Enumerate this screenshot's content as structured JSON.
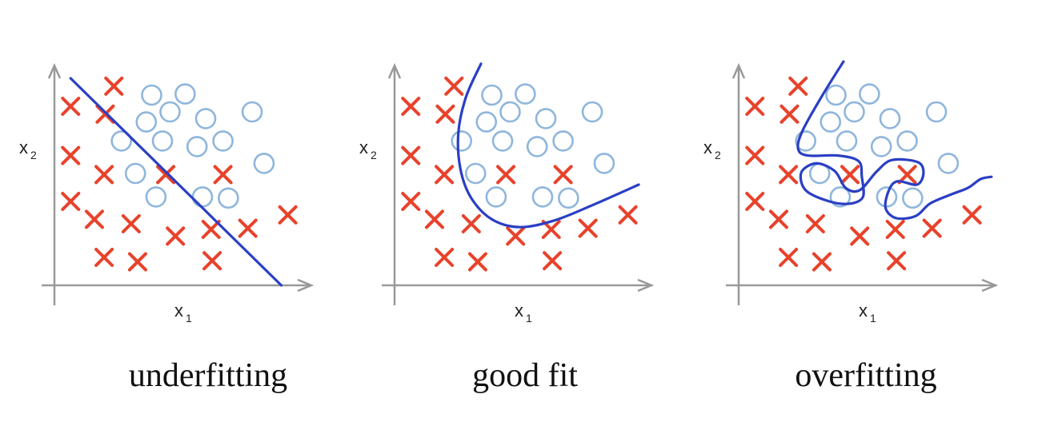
{
  "colors": {
    "cross": "#e8422b",
    "circle": "#8fb6dc",
    "boundary": "#2a3fc4",
    "axis": "#999999"
  },
  "panels": [
    {
      "id": "underfitting",
      "caption": "underfitting",
      "x_axis_label": "x",
      "x_axis_sub": "1",
      "y_axis_label": "x",
      "y_axis_sub": "2",
      "crosses": [
        [
          2.75,
          8.9
        ],
        [
          0.75,
          8.0
        ],
        [
          2.35,
          7.65
        ],
        [
          0.75,
          5.8
        ],
        [
          2.3,
          4.95
        ],
        [
          5.15,
          4.95
        ],
        [
          7.8,
          4.95
        ],
        [
          0.75,
          3.75
        ],
        [
          1.85,
          2.95
        ],
        [
          3.55,
          2.75
        ],
        [
          5.6,
          2.2
        ],
        [
          7.25,
          2.5
        ],
        [
          8.95,
          2.55
        ],
        [
          10.8,
          3.15
        ],
        [
          2.3,
          1.25
        ],
        [
          3.85,
          1.05
        ],
        [
          7.3,
          1.1
        ]
      ],
      "circles": [
        [
          4.5,
          8.5
        ],
        [
          6.05,
          8.55
        ],
        [
          4.25,
          7.3
        ],
        [
          5.35,
          7.75
        ],
        [
          7.0,
          7.45
        ],
        [
          9.15,
          7.75
        ],
        [
          3.1,
          6.45
        ],
        [
          5.0,
          6.45
        ],
        [
          6.6,
          6.2
        ],
        [
          7.8,
          6.45
        ],
        [
          9.7,
          5.45
        ],
        [
          3.75,
          5.0
        ],
        [
          4.7,
          3.95
        ],
        [
          6.85,
          3.95
        ],
        [
          8.05,
          3.9
        ]
      ],
      "boundary": [
        [
          0.75,
          9.25
        ],
        [
          10.5,
          0.0
        ]
      ]
    },
    {
      "id": "good-fit",
      "caption": "good fit",
      "x_axis_label": "x",
      "x_axis_sub": "1",
      "y_axis_label": "x",
      "y_axis_sub": "2",
      "crosses": [
        [
          2.75,
          8.9
        ],
        [
          0.75,
          8.0
        ],
        [
          2.35,
          7.65
        ],
        [
          0.75,
          5.8
        ],
        [
          2.3,
          4.95
        ],
        [
          5.15,
          4.95
        ],
        [
          7.8,
          4.95
        ],
        [
          0.75,
          3.75
        ],
        [
          1.85,
          2.95
        ],
        [
          3.55,
          2.75
        ],
        [
          5.6,
          2.2
        ],
        [
          7.25,
          2.5
        ],
        [
          8.95,
          2.55
        ],
        [
          10.8,
          3.15
        ],
        [
          2.3,
          1.25
        ],
        [
          3.85,
          1.05
        ],
        [
          7.3,
          1.1
        ]
      ],
      "circles": [
        [
          4.5,
          8.5
        ],
        [
          6.05,
          8.55
        ],
        [
          4.25,
          7.3
        ],
        [
          5.35,
          7.75
        ],
        [
          7.0,
          7.45
        ],
        [
          9.15,
          7.75
        ],
        [
          3.1,
          6.45
        ],
        [
          5.0,
          6.45
        ],
        [
          6.6,
          6.2
        ],
        [
          7.8,
          6.45
        ],
        [
          9.7,
          5.45
        ],
        [
          3.75,
          5.0
        ],
        [
          4.7,
          3.95
        ],
        [
          6.85,
          3.95
        ],
        [
          8.05,
          3.9
        ]
      ],
      "boundary": [
        [
          4.0,
          9.9
        ],
        [
          3.3,
          8.4
        ],
        [
          2.95,
          6.8
        ],
        [
          3.05,
          5.2
        ],
        [
          3.55,
          3.9
        ],
        [
          4.5,
          2.95
        ],
        [
          5.8,
          2.6
        ],
        [
          7.4,
          2.9
        ],
        [
          9.2,
          3.6
        ],
        [
          11.3,
          4.5
        ]
      ]
    },
    {
      "id": "overfitting",
      "caption": "overfitting",
      "x_axis_label": "x",
      "x_axis_sub": "1",
      "y_axis_label": "x",
      "y_axis_sub": "2",
      "crosses": [
        [
          2.75,
          8.9
        ],
        [
          0.75,
          8.0
        ],
        [
          2.35,
          7.65
        ],
        [
          0.75,
          5.8
        ],
        [
          2.3,
          4.95
        ],
        [
          5.15,
          4.95
        ],
        [
          7.8,
          4.95
        ],
        [
          0.75,
          3.75
        ],
        [
          1.85,
          2.95
        ],
        [
          3.55,
          2.75
        ],
        [
          5.6,
          2.2
        ],
        [
          7.25,
          2.5
        ],
        [
          8.95,
          2.55
        ],
        [
          10.8,
          3.15
        ],
        [
          2.3,
          1.25
        ],
        [
          3.85,
          1.05
        ],
        [
          7.3,
          1.1
        ]
      ],
      "circles": [
        [
          4.5,
          8.5
        ],
        [
          6.05,
          8.55
        ],
        [
          4.25,
          7.3
        ],
        [
          5.35,
          7.75
        ],
        [
          7.0,
          7.45
        ],
        [
          9.15,
          7.75
        ],
        [
          3.1,
          6.45
        ],
        [
          5.0,
          6.45
        ],
        [
          6.6,
          6.2
        ],
        [
          7.8,
          6.45
        ],
        [
          9.7,
          5.45
        ],
        [
          3.75,
          5.0
        ],
        [
          4.7,
          3.95
        ],
        [
          6.85,
          3.95
        ],
        [
          8.05,
          3.9
        ]
      ],
      "boundary": [
        [
          4.85,
          10.0
        ],
        [
          3.85,
          8.45
        ],
        [
          2.95,
          6.9
        ],
        [
          2.75,
          6.1
        ],
        [
          3.2,
          5.8
        ],
        [
          4.6,
          5.8
        ],
        [
          5.55,
          5.55
        ],
        [
          5.7,
          4.85
        ],
        [
          5.75,
          3.95
        ],
        [
          5.15,
          3.65
        ],
        [
          4.2,
          3.75
        ],
        [
          3.1,
          4.25
        ],
        [
          2.9,
          5.05
        ],
        [
          3.6,
          5.45
        ],
        [
          4.45,
          5.1
        ],
        [
          4.95,
          4.35
        ],
        [
          5.6,
          4.25
        ],
        [
          6.4,
          5.1
        ],
        [
          7.1,
          5.6
        ],
        [
          8.3,
          5.5
        ],
        [
          8.55,
          5.0
        ],
        [
          8.25,
          4.5
        ],
        [
          7.35,
          4.65
        ],
        [
          6.95,
          4.25
        ],
        [
          6.8,
          3.45
        ],
        [
          7.3,
          3.0
        ],
        [
          8.2,
          3.1
        ],
        [
          8.85,
          3.65
        ],
        [
          9.8,
          4.05
        ],
        [
          10.6,
          4.35
        ],
        [
          11.2,
          4.75
        ],
        [
          11.7,
          4.85
        ]
      ]
    }
  ]
}
